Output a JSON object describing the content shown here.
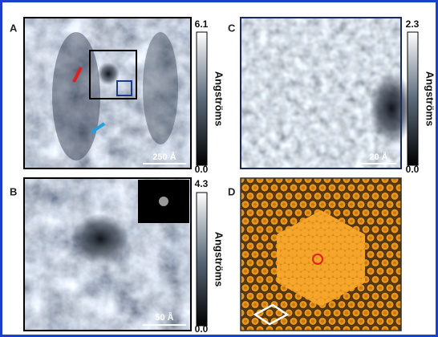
{
  "panels": [
    {
      "label": "A",
      "scale_bar": "250 Å",
      "colorbar": {
        "max": "6.1",
        "min": "0.0",
        "unit": "Angströms"
      }
    },
    {
      "label": "B",
      "scale_bar": "50 Å",
      "colorbar": {
        "max": "4.3",
        "min": "0.0",
        "unit": "Angströms"
      }
    },
    {
      "label": "C",
      "scale_bar": "20 Å",
      "colorbar": {
        "max": "2.3",
        "min": "0.0",
        "unit": "Angströms"
      }
    },
    {
      "label": "D"
    }
  ]
}
